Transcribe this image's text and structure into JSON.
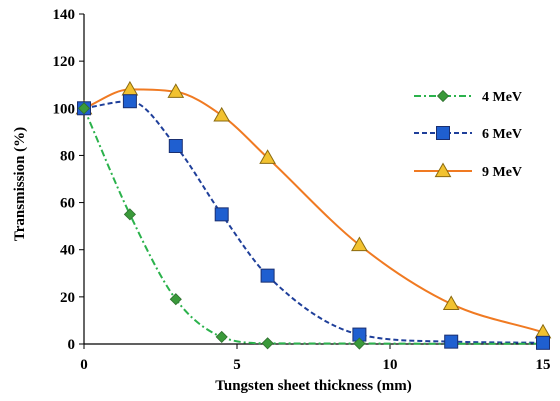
{
  "chart_data": {
    "type": "line",
    "title": "",
    "xlabel": "Tungsten sheet thickness (mm)",
    "ylabel": "Transmission (%)",
    "xlim": [
      0,
      15
    ],
    "ylim": [
      0,
      140
    ],
    "xticks": [
      0,
      5,
      10,
      15
    ],
    "yticks": [
      0,
      20,
      40,
      60,
      80,
      100,
      120,
      140
    ],
    "grid": false,
    "legend_position": "right",
    "series": [
      {
        "name": "4 MeV",
        "marker": "diamond",
        "line_style": "dash-dot",
        "color": "#2bb24c",
        "marker_color": "#3a9a3a",
        "x": [
          0,
          1.5,
          3,
          4.5,
          6,
          9,
          12,
          15
        ],
        "y": [
          100,
          55,
          19,
          3,
          0.3,
          0.2,
          0.1,
          0.1
        ],
        "markers_x": [
          0,
          1.5,
          3,
          4.5,
          6,
          9
        ],
        "markers_y": [
          100,
          55,
          19,
          3,
          0.3,
          0.2
        ]
      },
      {
        "name": "6 MeV",
        "marker": "square",
        "line_style": "dashed",
        "color": "#1f3f9a",
        "marker_color": "#1f5fd0",
        "x": [
          0,
          1.5,
          3,
          4.5,
          6,
          9,
          12,
          15
        ],
        "y": [
          100,
          103,
          84,
          55,
          29,
          4,
          1,
          0.5
        ],
        "markers_x": [
          0,
          1.5,
          3,
          4.5,
          6,
          9,
          12,
          15
        ],
        "markers_y": [
          100,
          103,
          84,
          55,
          29,
          4,
          1,
          0.5
        ]
      },
      {
        "name": "9 MeV",
        "marker": "triangle",
        "line_style": "solid",
        "color": "#f07a22",
        "marker_color": "#f2c230",
        "x": [
          0,
          1.5,
          3,
          4.5,
          6,
          9,
          12,
          15
        ],
        "y": [
          100,
          108,
          107,
          97,
          79,
          42,
          17,
          5
        ],
        "markers_x": [
          0,
          1.5,
          3,
          4.5,
          6,
          9,
          12,
          15
        ],
        "markers_y": [
          100,
          108,
          107,
          97,
          79,
          42,
          17,
          5
        ]
      }
    ]
  }
}
